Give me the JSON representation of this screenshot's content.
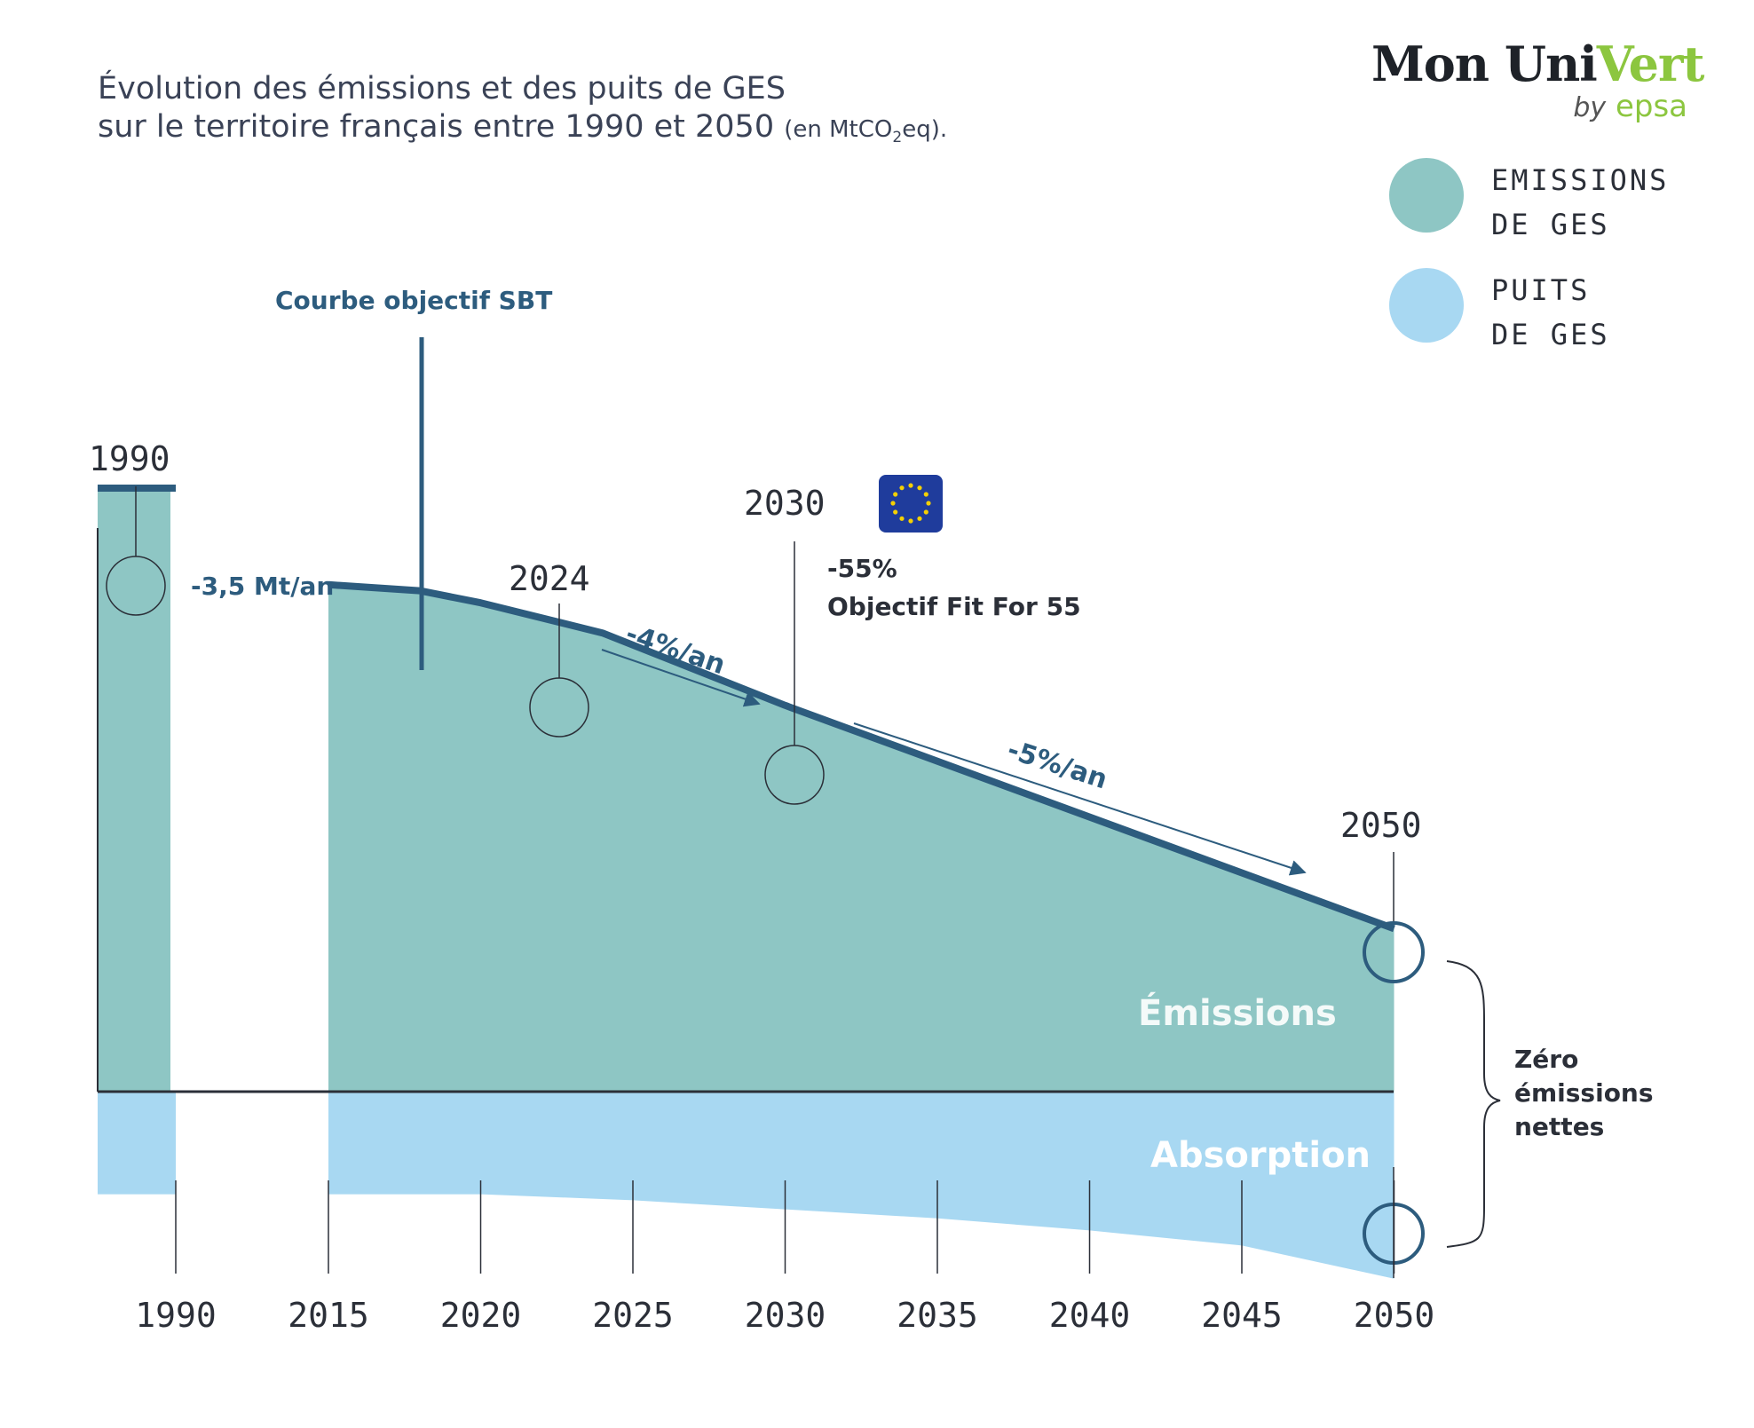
{
  "title": {
    "line1": "Évolution des émissions et des puits de GES",
    "line2": "sur le territoire français entre 1990 et 2050",
    "unit_open": "(en MtCO",
    "unit_sub": "2",
    "unit_close": "eq)."
  },
  "logo": {
    "brand_dark": "Mon Uni",
    "brand_green": "Vert",
    "by": "by",
    "sub": "epsa"
  },
  "legend": [
    {
      "label_line1": "EMISSIONS",
      "label_line2": "DE GES",
      "color": "#8ec6c4"
    },
    {
      "label_line1": "PUITS",
      "label_line2": "DE GES",
      "color": "#a8d8f2"
    }
  ],
  "colors": {
    "emissions": "#8ec6c4",
    "sinks": "#a8d8f2",
    "curve": "#2d5c7e",
    "axis": "#2b2f38",
    "eu_flag": "#1f3c9c",
    "eu_star": "#f4d003"
  },
  "chart_data": {
    "type": "area",
    "x_axis": {
      "ticks": [
        "1990",
        "2015",
        "2020",
        "2025",
        "2030",
        "2035",
        "2040",
        "2045",
        "2050"
      ],
      "note": "1990 shown as isolated bar, axis break before 2015"
    },
    "y_axis": {
      "unit": "MtCO2eq",
      "labels": "none printed"
    },
    "series": [
      {
        "name": "Émissions",
        "key": "emissions",
        "points": [
          {
            "x": 1990,
            "y": 100
          },
          {
            "x": 2015,
            "y": 84
          },
          {
            "x": 2018,
            "y": 83
          },
          {
            "x": 2020,
            "y": 81
          },
          {
            "x": 2024,
            "y": 76
          },
          {
            "x": 2030,
            "y": 64
          },
          {
            "x": 2050,
            "y": 27
          }
        ]
      },
      {
        "name": "Absorption",
        "key": "sinks",
        "points": [
          {
            "x": 1990,
            "y": -17
          },
          {
            "x": 2015,
            "y": -17
          },
          {
            "x": 2020,
            "y": -17
          },
          {
            "x": 2025,
            "y": -18
          },
          {
            "x": 2030,
            "y": -19.5
          },
          {
            "x": 2035,
            "y": -21
          },
          {
            "x": 2040,
            "y": -23
          },
          {
            "x": 2045,
            "y": -25.5
          },
          {
            "x": 2050,
            "y": -31
          }
        ]
      }
    ],
    "curve_label": "Courbe objectif SBT",
    "year_markers": [
      "1990",
      "2024",
      "2030",
      "2050"
    ],
    "annotations": {
      "rate_1990": "-3,5 Mt/an",
      "rate_2024_2030": "-4%/an",
      "rate_2030_2050": "-5%/an",
      "target_2030_pct": "-55%",
      "target_2030_label": "Objectif Fit For 55",
      "emissions_label": "Émissions",
      "absorption_label": "Absorption",
      "net_zero_line1": "Zéro",
      "net_zero_line2": "émissions",
      "net_zero_line3": "nettes"
    }
  }
}
